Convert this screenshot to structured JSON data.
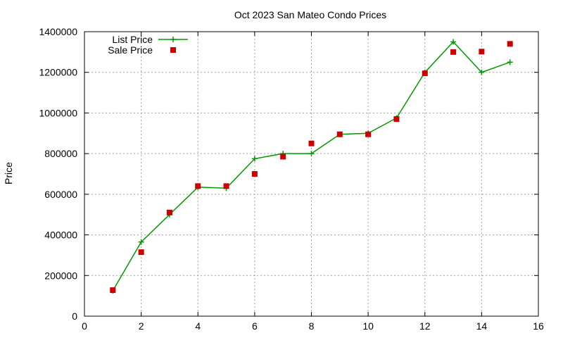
{
  "chart_data": {
    "type": "line",
    "title": "Oct 2023 San Mateo Condo Prices",
    "xlabel": "",
    "ylabel": "Price",
    "xlim": [
      0,
      16
    ],
    "ylim": [
      0,
      1400000
    ],
    "xticks": [
      0,
      2,
      4,
      6,
      8,
      10,
      12,
      14,
      16
    ],
    "yticks": [
      0,
      200000,
      400000,
      600000,
      800000,
      1000000,
      1200000,
      1400000
    ],
    "grid": true,
    "legend_position": "top-left",
    "series": [
      {
        "name": "List Price",
        "style": "line+cross",
        "color": "#009900",
        "x": [
          1,
          2,
          3,
          4,
          5,
          6,
          7,
          8,
          9,
          10,
          11,
          12,
          13,
          14,
          15
        ],
        "values": [
          125000,
          365000,
          500000,
          635000,
          630000,
          775000,
          800000,
          800000,
          895000,
          900000,
          975000,
          1200000,
          1350000,
          1200000,
          1250000
        ]
      },
      {
        "name": "Sale Price",
        "style": "square",
        "color": "#cc0000",
        "x": [
          1,
          2,
          3,
          4,
          5,
          6,
          7,
          8,
          9,
          10,
          11,
          12,
          13,
          14,
          15
        ],
        "values": [
          128000,
          315000,
          510000,
          640000,
          640000,
          700000,
          785000,
          850000,
          895000,
          895000,
          970000,
          1195000,
          1300000,
          1302000,
          1340000
        ]
      }
    ]
  }
}
